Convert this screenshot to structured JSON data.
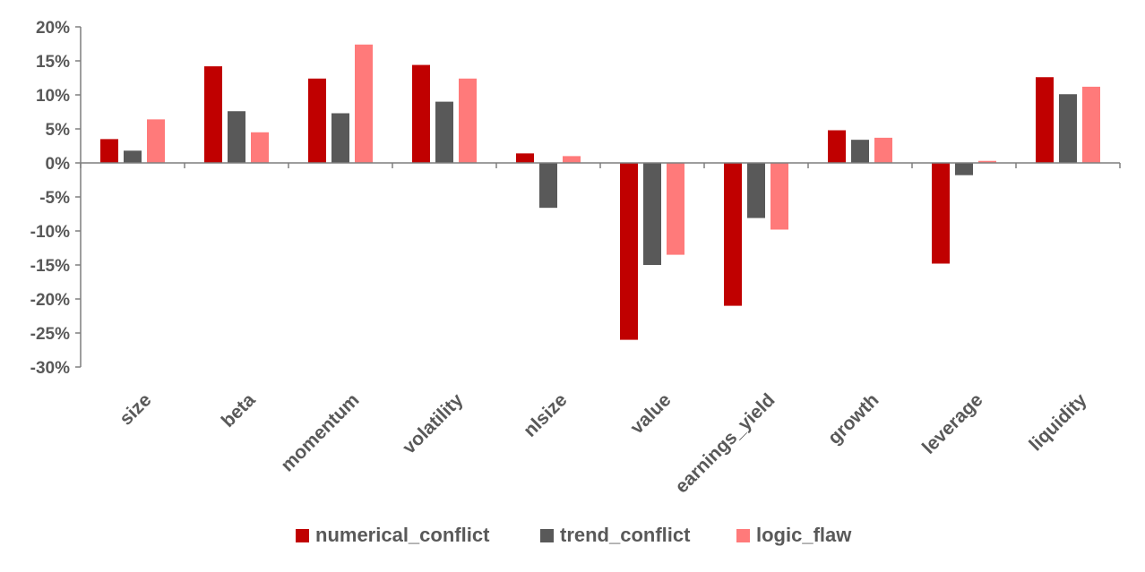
{
  "chart_data": {
    "type": "bar",
    "categories": [
      "size",
      "beta",
      "momentum",
      "volatility",
      "nlsize",
      "value",
      "earnings_yield",
      "growth",
      "leverage",
      "liquidity"
    ],
    "series": [
      {
        "name": "numerical_conflict",
        "color": "#C00000",
        "values": [
          3.5,
          14.2,
          12.4,
          14.4,
          1.4,
          -26.0,
          -21.0,
          4.8,
          -14.8,
          12.6
        ]
      },
      {
        "name": "trend_conflict",
        "color": "#595959",
        "values": [
          1.8,
          7.6,
          7.3,
          9.0,
          -6.6,
          -15.0,
          -8.1,
          3.4,
          -1.8,
          10.1
        ]
      },
      {
        "name": "logic_flaw",
        "color": "#FF7A7A",
        "values": [
          6.4,
          4.5,
          17.4,
          12.4,
          1.0,
          -13.5,
          -9.8,
          3.7,
          0.3,
          11.2
        ]
      }
    ],
    "ylim": [
      -30,
      20
    ],
    "yticks": [
      20,
      15,
      10,
      5,
      0,
      -5,
      -10,
      -15,
      -20,
      -25,
      -30
    ],
    "ytick_labels": [
      "20%",
      "15%",
      "10%",
      "5%",
      "0%",
      "-5%",
      "-10%",
      "-15%",
      "-20%",
      "-25%",
      "-30%"
    ],
    "title": "",
    "xlabel": "",
    "ylabel": "",
    "grid": false,
    "legend_position": "bottom"
  }
}
